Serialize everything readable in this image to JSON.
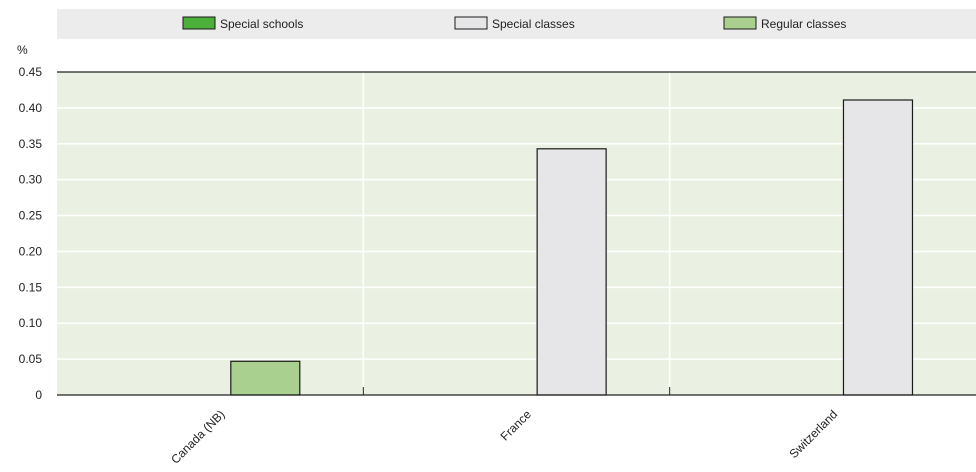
{
  "chart_data": {
    "type": "bar",
    "ylabel": "%",
    "ylim": [
      0,
      0.45
    ],
    "yticks": [
      "0",
      "0.05",
      "0.10",
      "0.15",
      "0.20",
      "0.25",
      "0.30",
      "0.35",
      "0.40",
      "0.45"
    ],
    "categories": [
      "Canada (NB)",
      "France",
      "Switzerland"
    ],
    "series": [
      {
        "name": "Special schools",
        "color": "#4caf3a",
        "values": [
          null,
          null,
          null
        ]
      },
      {
        "name": "Special classes",
        "color": "#e6e6e8",
        "values": [
          null,
          0.343,
          0.411
        ]
      },
      {
        "name": "Regular classes",
        "color": "#a9d08e",
        "values": [
          0.047,
          null,
          null
        ]
      }
    ],
    "grid": true,
    "legend_position": "top",
    "plot_background": "#ebf1e2"
  }
}
